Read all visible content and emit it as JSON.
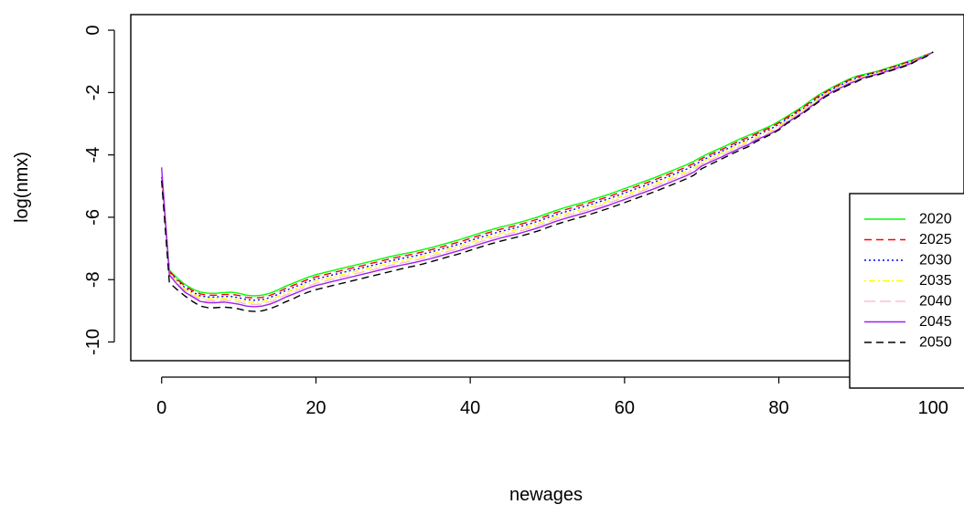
{
  "chart_data": {
    "type": "line",
    "title": "",
    "xlabel": "newages",
    "ylabel": "log(nmx)",
    "xlim": [
      -4,
      104
    ],
    "ylim": [
      -10.6,
      0.5
    ],
    "x_ticks": [
      0,
      20,
      40,
      60,
      80,
      100
    ],
    "y_ticks": [
      0,
      -2,
      -4,
      -6,
      -8,
      -10
    ],
    "legend_position": "right",
    "x": [
      0,
      1,
      2,
      3,
      4,
      5,
      6,
      7,
      8,
      9,
      10,
      11,
      12,
      13,
      14,
      15,
      16,
      17,
      18,
      19,
      20,
      21,
      22,
      23,
      24,
      25,
      26,
      27,
      28,
      29,
      30,
      31,
      32,
      33,
      34,
      35,
      36,
      37,
      38,
      39,
      40,
      41,
      42,
      43,
      44,
      45,
      46,
      47,
      48,
      49,
      50,
      51,
      52,
      53,
      54,
      55,
      56,
      57,
      58,
      59,
      60,
      61,
      62,
      63,
      64,
      65,
      66,
      67,
      68,
      69,
      70,
      71,
      72,
      73,
      74,
      75,
      76,
      77,
      78,
      79,
      80,
      81,
      82,
      83,
      84,
      85,
      86,
      87,
      88,
      89,
      90,
      91,
      92,
      93,
      94,
      95,
      96,
      97,
      98,
      99,
      100
    ],
    "series": [
      {
        "name": "2020",
        "color": "#00ff00",
        "dash": "solid",
        "values": [
          -4.7,
          -7.7,
          -7.95,
          -8.15,
          -8.3,
          -8.4,
          -8.44,
          -8.44,
          -8.42,
          -8.4,
          -8.44,
          -8.5,
          -8.52,
          -8.5,
          -8.44,
          -8.34,
          -8.22,
          -8.12,
          -8.02,
          -7.92,
          -7.84,
          -7.78,
          -7.72,
          -7.66,
          -7.6,
          -7.54,
          -7.48,
          -7.42,
          -7.36,
          -7.3,
          -7.24,
          -7.19,
          -7.14,
          -7.09,
          -7.03,
          -6.97,
          -6.9,
          -6.83,
          -6.76,
          -6.69,
          -6.61,
          -6.53,
          -6.45,
          -6.38,
          -6.31,
          -6.25,
          -6.19,
          -6.12,
          -6.05,
          -5.97,
          -5.88,
          -5.79,
          -5.71,
          -5.64,
          -5.57,
          -5.5,
          -5.42,
          -5.34,
          -5.26,
          -5.17,
          -5.08,
          -4.99,
          -4.9,
          -4.81,
          -4.72,
          -4.62,
          -4.52,
          -4.42,
          -4.32,
          -4.2,
          -4.06,
          -3.94,
          -3.83,
          -3.72,
          -3.6,
          -3.48,
          -3.38,
          -3.28,
          -3.17,
          -3.06,
          -2.92,
          -2.77,
          -2.62,
          -2.46,
          -2.28,
          -2.1,
          -1.96,
          -1.82,
          -1.7,
          -1.58,
          -1.48,
          -1.42,
          -1.36,
          -1.3,
          -1.22,
          -1.14,
          -1.06,
          -0.98,
          -0.9,
          -0.8,
          -0.7
        ]
      },
      {
        "name": "2025",
        "color": "#ff0000",
        "dash": "dashed",
        "values": [
          -4.72,
          -7.73,
          -7.99,
          -8.2,
          -8.35,
          -8.46,
          -8.5,
          -8.5,
          -8.48,
          -8.47,
          -8.51,
          -8.57,
          -8.59,
          -8.57,
          -8.51,
          -8.41,
          -8.29,
          -8.19,
          -8.09,
          -7.99,
          -7.91,
          -7.85,
          -7.79,
          -7.73,
          -7.67,
          -7.61,
          -7.55,
          -7.49,
          -7.43,
          -7.37,
          -7.31,
          -7.26,
          -7.21,
          -7.16,
          -7.1,
          -7.04,
          -6.97,
          -6.9,
          -6.83,
          -6.76,
          -6.68,
          -6.6,
          -6.52,
          -6.45,
          -6.38,
          -6.32,
          -6.26,
          -6.19,
          -6.12,
          -6.04,
          -5.95,
          -5.86,
          -5.78,
          -5.71,
          -5.64,
          -5.57,
          -5.49,
          -5.41,
          -5.33,
          -5.24,
          -5.15,
          -5.06,
          -4.97,
          -4.88,
          -4.79,
          -4.69,
          -4.59,
          -4.49,
          -4.39,
          -4.27,
          -4.12,
          -4.0,
          -3.89,
          -3.78,
          -3.66,
          -3.54,
          -3.44,
          -3.33,
          -3.22,
          -3.11,
          -2.97,
          -2.81,
          -2.66,
          -2.5,
          -2.32,
          -2.14,
          -1.99,
          -1.85,
          -1.73,
          -1.61,
          -1.51,
          -1.44,
          -1.38,
          -1.32,
          -1.24,
          -1.16,
          -1.08,
          -1.0,
          -0.91,
          -0.81,
          -0.7
        ]
      },
      {
        "name": "2030",
        "color": "#0000ff",
        "dash": "dotted",
        "values": [
          -4.74,
          -7.76,
          -8.03,
          -8.25,
          -8.4,
          -8.52,
          -8.56,
          -8.56,
          -8.54,
          -8.54,
          -8.58,
          -8.64,
          -8.66,
          -8.64,
          -8.58,
          -8.48,
          -8.36,
          -8.26,
          -8.16,
          -8.06,
          -7.98,
          -7.92,
          -7.86,
          -7.8,
          -7.74,
          -7.68,
          -7.62,
          -7.56,
          -7.5,
          -7.44,
          -7.38,
          -7.33,
          -7.28,
          -7.23,
          -7.17,
          -7.11,
          -7.04,
          -6.97,
          -6.9,
          -6.83,
          -6.75,
          -6.67,
          -6.59,
          -6.52,
          -6.45,
          -6.39,
          -6.33,
          -6.26,
          -6.19,
          -6.11,
          -6.02,
          -5.93,
          -5.85,
          -5.78,
          -5.71,
          -5.64,
          -5.56,
          -5.48,
          -5.4,
          -5.31,
          -5.22,
          -5.13,
          -5.04,
          -4.95,
          -4.86,
          -4.76,
          -4.66,
          -4.56,
          -4.46,
          -4.34,
          -4.18,
          -4.06,
          -3.95,
          -3.84,
          -3.72,
          -3.6,
          -3.5,
          -3.38,
          -3.27,
          -3.16,
          -3.02,
          -2.85,
          -2.7,
          -2.54,
          -2.36,
          -2.18,
          -2.02,
          -1.88,
          -1.76,
          -1.64,
          -1.54,
          -1.46,
          -1.4,
          -1.34,
          -1.26,
          -1.18,
          -1.1,
          -1.02,
          -0.92,
          -0.82,
          -0.7
        ]
      },
      {
        "name": "2035",
        "color": "#ffff00",
        "dash": "dotdash",
        "values": [
          -4.76,
          -7.79,
          -8.07,
          -8.3,
          -8.45,
          -8.58,
          -8.62,
          -8.62,
          -8.6,
          -8.61,
          -8.65,
          -8.71,
          -8.73,
          -8.71,
          -8.65,
          -8.55,
          -8.43,
          -8.33,
          -8.23,
          -8.13,
          -8.05,
          -7.99,
          -7.93,
          -7.87,
          -7.81,
          -7.75,
          -7.69,
          -7.63,
          -7.57,
          -7.51,
          -7.45,
          -7.4,
          -7.35,
          -7.3,
          -7.24,
          -7.18,
          -7.11,
          -7.04,
          -6.97,
          -6.9,
          -6.82,
          -6.74,
          -6.66,
          -6.59,
          -6.52,
          -6.46,
          -6.4,
          -6.33,
          -6.26,
          -6.18,
          -6.09,
          -6.0,
          -5.92,
          -5.85,
          -5.78,
          -5.71,
          -5.63,
          -5.55,
          -5.47,
          -5.38,
          -5.29,
          -5.2,
          -5.11,
          -5.02,
          -4.93,
          -4.83,
          -4.73,
          -4.63,
          -4.53,
          -4.41,
          -4.24,
          -4.12,
          -4.01,
          -3.9,
          -3.78,
          -3.66,
          -3.56,
          -3.43,
          -3.32,
          -3.21,
          -3.07,
          -2.89,
          -2.74,
          -2.58,
          -2.4,
          -2.22,
          -2.05,
          -1.91,
          -1.79,
          -1.67,
          -1.57,
          -1.48,
          -1.42,
          -1.36,
          -1.28,
          -1.2,
          -1.12,
          -1.04,
          -0.93,
          -0.83,
          -0.7
        ]
      },
      {
        "name": "2040",
        "color": "#ffc0cb",
        "dash": "longdash",
        "values": [
          -4.78,
          -7.82,
          -8.11,
          -8.35,
          -8.5,
          -8.64,
          -8.68,
          -8.68,
          -8.66,
          -8.68,
          -8.72,
          -8.78,
          -8.8,
          -8.78,
          -8.72,
          -8.62,
          -8.5,
          -8.4,
          -8.3,
          -8.2,
          -8.12,
          -8.06,
          -8.0,
          -7.94,
          -7.88,
          -7.82,
          -7.76,
          -7.7,
          -7.64,
          -7.58,
          -7.52,
          -7.47,
          -7.42,
          -7.37,
          -7.31,
          -7.25,
          -7.18,
          -7.11,
          -7.04,
          -6.97,
          -6.89,
          -6.81,
          -6.73,
          -6.66,
          -6.59,
          -6.53,
          -6.47,
          -6.4,
          -6.33,
          -6.25,
          -6.16,
          -6.07,
          -5.99,
          -5.92,
          -5.85,
          -5.78,
          -5.7,
          -5.62,
          -5.54,
          -5.45,
          -5.36,
          -5.27,
          -5.18,
          -5.09,
          -5.0,
          -4.9,
          -4.8,
          -4.7,
          -4.6,
          -4.48,
          -4.3,
          -4.18,
          -4.07,
          -3.96,
          -3.84,
          -3.72,
          -3.62,
          -3.48,
          -3.37,
          -3.26,
          -3.12,
          -2.93,
          -2.78,
          -2.62,
          -2.44,
          -2.26,
          -2.08,
          -1.94,
          -1.82,
          -1.7,
          -1.6,
          -1.5,
          -1.44,
          -1.38,
          -1.3,
          -1.22,
          -1.14,
          -1.06,
          -0.94,
          -0.84,
          -0.7
        ]
      },
      {
        "name": "2045",
        "color": "#a020f0",
        "dash": "solid",
        "values": [
          -4.4,
          -7.85,
          -8.15,
          -8.4,
          -8.55,
          -8.7,
          -8.74,
          -8.74,
          -8.72,
          -8.75,
          -8.79,
          -8.85,
          -8.87,
          -8.85,
          -8.79,
          -8.69,
          -8.57,
          -8.47,
          -8.37,
          -8.27,
          -8.19,
          -8.13,
          -8.07,
          -8.01,
          -7.95,
          -7.89,
          -7.83,
          -7.77,
          -7.71,
          -7.65,
          -7.59,
          -7.54,
          -7.49,
          -7.44,
          -7.38,
          -7.32,
          -7.25,
          -7.18,
          -7.11,
          -7.04,
          -6.96,
          -6.88,
          -6.8,
          -6.73,
          -6.66,
          -6.6,
          -6.54,
          -6.47,
          -6.4,
          -6.32,
          -6.23,
          -6.14,
          -6.06,
          -5.99,
          -5.92,
          -5.85,
          -5.77,
          -5.69,
          -5.61,
          -5.52,
          -5.43,
          -5.34,
          -5.25,
          -5.16,
          -5.07,
          -4.97,
          -4.87,
          -4.77,
          -4.67,
          -4.55,
          -4.36,
          -4.24,
          -4.13,
          -4.02,
          -3.9,
          -3.78,
          -3.68,
          -3.53,
          -3.42,
          -3.31,
          -3.17,
          -2.97,
          -2.82,
          -2.66,
          -2.48,
          -2.3,
          -2.11,
          -1.97,
          -1.85,
          -1.73,
          -1.63,
          -1.52,
          -1.46,
          -1.4,
          -1.32,
          -1.24,
          -1.16,
          -1.08,
          -0.95,
          -0.85,
          -0.7
        ]
      },
      {
        "name": "2050",
        "color": "#000000",
        "dash": "dashed",
        "values": [
          -4.82,
          -8.1,
          -8.32,
          -8.52,
          -8.7,
          -8.85,
          -8.9,
          -8.9,
          -8.88,
          -8.9,
          -8.94,
          -9.0,
          -9.02,
          -9.0,
          -8.94,
          -8.84,
          -8.72,
          -8.62,
          -8.5,
          -8.4,
          -8.32,
          -8.26,
          -8.2,
          -8.14,
          -8.08,
          -8.02,
          -7.96,
          -7.9,
          -7.84,
          -7.78,
          -7.72,
          -7.66,
          -7.6,
          -7.55,
          -7.49,
          -7.42,
          -7.35,
          -7.28,
          -7.21,
          -7.14,
          -7.06,
          -6.98,
          -6.9,
          -6.83,
          -6.76,
          -6.7,
          -6.64,
          -6.57,
          -6.5,
          -6.42,
          -6.33,
          -6.24,
          -6.16,
          -6.09,
          -6.02,
          -5.95,
          -5.87,
          -5.79,
          -5.71,
          -5.62,
          -5.53,
          -5.44,
          -5.35,
          -5.26,
          -5.17,
          -5.07,
          -4.97,
          -4.87,
          -4.77,
          -4.65,
          -4.44,
          -4.32,
          -4.2,
          -4.08,
          -3.96,
          -3.84,
          -3.74,
          -3.58,
          -3.46,
          -3.34,
          -3.2,
          -3.0,
          -2.85,
          -2.69,
          -2.51,
          -2.33,
          -2.14,
          -2.0,
          -1.88,
          -1.76,
          -1.66,
          -1.54,
          -1.48,
          -1.42,
          -1.34,
          -1.26,
          -1.18,
          -1.1,
          -0.96,
          -0.86,
          -0.7
        ]
      }
    ]
  }
}
